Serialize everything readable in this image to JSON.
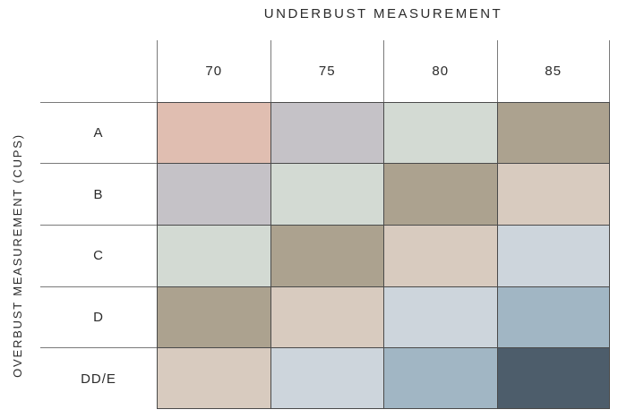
{
  "title": "UNDERBUST MEASUREMENT",
  "y_axis_label": "OVERBUST MEASUREMENT (CUPS)",
  "chart_data": {
    "type": "heatmap",
    "title": "UNDERBUST MEASUREMENT",
    "xlabel": "UNDERBUST MEASUREMENT",
    "ylabel": "OVERBUST MEASUREMENT (CUPS)",
    "columns": [
      "70",
      "75",
      "80",
      "85"
    ],
    "rows": [
      "A",
      "B",
      "C",
      "D",
      "DD/E"
    ],
    "palette": [
      "#E0BEB1",
      "#C5C2C7",
      "#D3DAD3",
      "#ACA28F",
      "#D8CBBF",
      "#CDD5DC",
      "#A1B6C4",
      "#4D5D6B"
    ],
    "cell_colors": [
      [
        "#E0BEB1",
        "#C5C2C7",
        "#D3DAD3",
        "#ACA28F"
      ],
      [
        "#C5C2C7",
        "#D3DAD3",
        "#ACA28F",
        "#D8CBBF"
      ],
      [
        "#D3DAD3",
        "#ACA28F",
        "#D8CBBF",
        "#CDD5DC"
      ],
      [
        "#ACA28F",
        "#D8CBBF",
        "#CDD5DC",
        "#A1B6C4"
      ],
      [
        "#D8CBBF",
        "#CDD5DC",
        "#A1B6C4",
        "#4D5D6B"
      ]
    ],
    "legend": "none",
    "grid": true
  }
}
